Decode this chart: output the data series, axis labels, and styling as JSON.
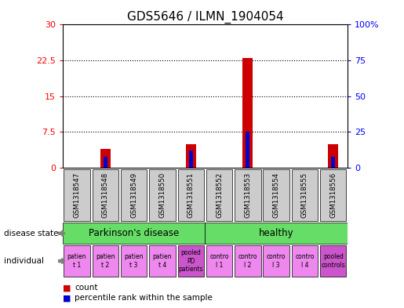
{
  "title": "GDS5646 / ILMN_1904054",
  "samples": [
    "GSM1318547",
    "GSM1318548",
    "GSM1318549",
    "GSM1318550",
    "GSM1318551",
    "GSM1318552",
    "GSM1318553",
    "GSM1318554",
    "GSM1318555",
    "GSM1318556"
  ],
  "count_values": [
    0,
    4,
    0,
    0,
    5,
    0,
    23,
    0,
    0,
    5
  ],
  "percentile_values": [
    0,
    8,
    0,
    0,
    12,
    0,
    25,
    0,
    0,
    8
  ],
  "left_ylim": [
    0,
    30
  ],
  "right_ylim": [
    0,
    100
  ],
  "left_yticks": [
    0,
    7.5,
    15,
    22.5,
    30
  ],
  "right_yticks": [
    0,
    25,
    50,
    75,
    100
  ],
  "left_yticklabels": [
    "0",
    "7.5",
    "15",
    "22.5",
    "30"
  ],
  "right_yticklabels": [
    "0",
    "25",
    "50",
    "75",
    "100%"
  ],
  "disease_state_color": "#66dd66",
  "individual_colors_normal": "#ee88ee",
  "individual_colors_pooled": "#cc55cc",
  "pooled_individual_indices": [
    4,
    9
  ],
  "sample_bg_color": "#cccccc",
  "bar_color_red": "#cc0000",
  "bar_color_blue": "#0000cc",
  "bar_width": 0.35,
  "individual_texts": [
    "patien\nt 1",
    "patien\nt 2",
    "patien\nt 3",
    "patien\nt 4",
    "pooled\nPD\npatients",
    "contro\nl 1",
    "contro\nl 2",
    "contro\nl 3",
    "contro\nl 4",
    "pooled\ncontrols"
  ]
}
